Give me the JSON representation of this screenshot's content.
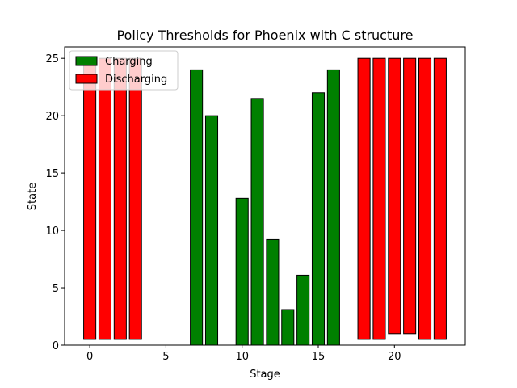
{
  "chart_data": {
    "type": "bar",
    "title": "Policy Thresholds for Phoenix with C structure",
    "xlabel": "Stage",
    "ylabel": "State",
    "xlim": [
      -1.65,
      24.65
    ],
    "ylim": [
      0,
      26
    ],
    "xticks": [
      0,
      5,
      10,
      15,
      20
    ],
    "yticks": [
      0,
      5,
      10,
      15,
      20,
      25
    ],
    "bar_width": 0.8,
    "legend_location": "upper left",
    "series": [
      {
        "name": "Charging",
        "color": "#008000",
        "bars": [
          {
            "x": 7,
            "bottom": 0,
            "top": 24
          },
          {
            "x": 8,
            "bottom": 0,
            "top": 20
          },
          {
            "x": 10,
            "bottom": 0,
            "top": 12.8
          },
          {
            "x": 11,
            "bottom": 0,
            "top": 21.5
          },
          {
            "x": 12,
            "bottom": 0,
            "top": 9.2
          },
          {
            "x": 13,
            "bottom": 0,
            "top": 3.1
          },
          {
            "x": 14,
            "bottom": 0,
            "top": 6.1
          },
          {
            "x": 15,
            "bottom": 0,
            "top": 22
          },
          {
            "x": 16,
            "bottom": 0,
            "top": 24
          }
        ]
      },
      {
        "name": "Discharging",
        "color": "#ff0000",
        "bars": [
          {
            "x": 0,
            "bottom": 0.5,
            "top": 25
          },
          {
            "x": 1,
            "bottom": 0.5,
            "top": 25
          },
          {
            "x": 2,
            "bottom": 0.5,
            "top": 25
          },
          {
            "x": 3,
            "bottom": 0.5,
            "top": 25
          },
          {
            "x": 18,
            "bottom": 0.5,
            "top": 25
          },
          {
            "x": 19,
            "bottom": 0.5,
            "top": 25
          },
          {
            "x": 20,
            "bottom": 1,
            "top": 25
          },
          {
            "x": 21,
            "bottom": 1,
            "top": 25
          },
          {
            "x": 22,
            "bottom": 0.5,
            "top": 25
          },
          {
            "x": 23,
            "bottom": 0.5,
            "top": 25
          }
        ]
      }
    ]
  }
}
